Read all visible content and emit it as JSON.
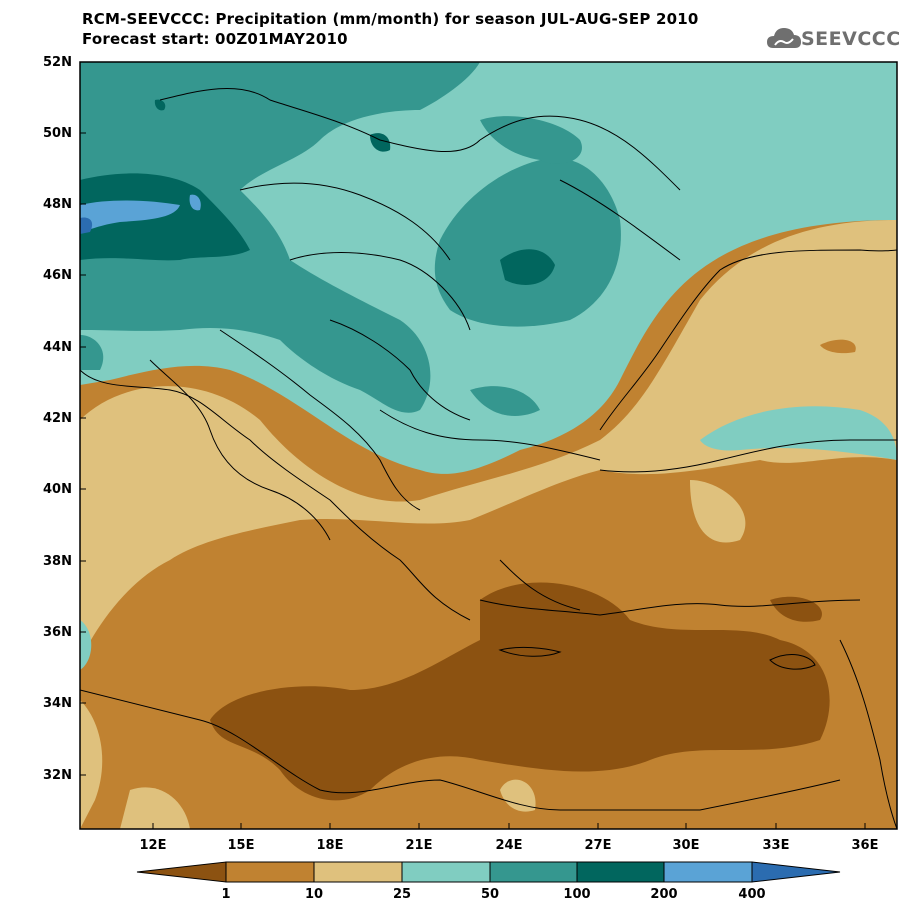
{
  "title_line1": "RCM-SEEVCCC: Precipitation (mm/month) for season JUL-AUG-SEP 2010",
  "title_line2": "Forecast start: 00Z01MAY2010",
  "logo": {
    "icon": "cloud-icon",
    "text": "SEEVCCC"
  },
  "lat_labels": [
    "52N",
    "50N",
    "48N",
    "46N",
    "44N",
    "42N",
    "40N",
    "38N",
    "36N",
    "34N",
    "32N"
  ],
  "lon_labels": [
    "12E",
    "15E",
    "18E",
    "21E",
    "24E",
    "27E",
    "30E",
    "33E",
    "36E"
  ],
  "colorbar": {
    "labels": [
      "1",
      "10",
      "25",
      "50",
      "100",
      "200",
      "400"
    ],
    "colors": [
      "#8c5211",
      "#c08231",
      "#dfc17d",
      "#80cdc1",
      "#35978f",
      "#01665e",
      "#5aa3d6",
      "#2b6cb0"
    ]
  }
}
